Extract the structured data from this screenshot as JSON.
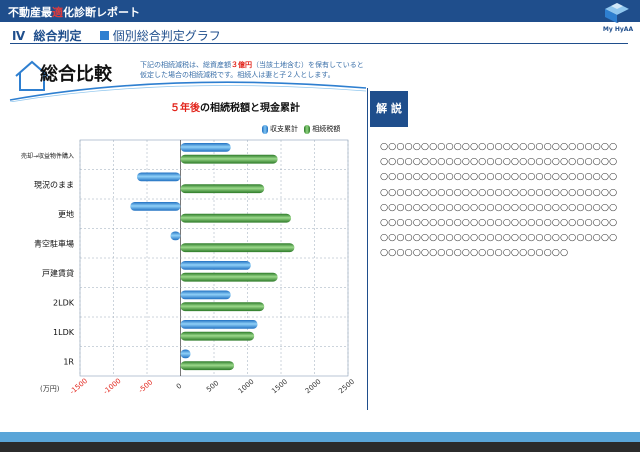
{
  "header": {
    "title_pre": "不動産最",
    "title_hl": "適",
    "title_post": "化診断レポート"
  },
  "logo": {
    "text": "My HyAA"
  },
  "section": {
    "number": "Ⅳ",
    "title": "総合判定",
    "subtitle": "個別総合判定グラフ"
  },
  "page_heading": "総合比較",
  "description": {
    "line1_a": "下記の相続減税は、総資産額",
    "line1_red": "３億円",
    "line1_b": "（当該土地含む）を保有していると",
    "line2": "仮定した場合の相続減税です。相続人は妻と子２人とします。"
  },
  "chart_title": {
    "red": "５年後",
    "rest": "の相続税額と現金累計"
  },
  "legend": {
    "cash": "収支累計",
    "tax": "相続税額"
  },
  "colors": {
    "cash": "#2f8ee0",
    "tax": "#3f9a3a",
    "brand": "#1f4e8c",
    "accent": "#e2231a"
  },
  "chart_data": {
    "type": "bar",
    "orientation": "horizontal",
    "title": "５年後の相続税額と現金累計",
    "categories": [
      "売却→収益物件購入",
      "現況のまま",
      "更地",
      "青空駐車場",
      "戸建賃貸",
      "2LDK",
      "1LDK",
      "1R"
    ],
    "series": [
      {
        "name": "収支累計",
        "values": [
          750,
          -650,
          -750,
          -150,
          1050,
          750,
          1150,
          150
        ]
      },
      {
        "name": "相続税額",
        "values": [
          1450,
          1250,
          1650,
          1700,
          1450,
          1250,
          1100,
          800
        ]
      }
    ],
    "xlabel": "(万円)",
    "xlim": [
      -1500,
      2500
    ],
    "xticks": [
      "-1500",
      "-1000",
      "-500",
      "0",
      "500",
      "1000",
      "1500",
      "2000",
      "2500"
    ],
    "grid": true,
    "legend_position": "top-right"
  },
  "commentary": {
    "heading": "解 説",
    "text": "○○○○○○○○○○○○○○○○○○○○○○○○○○○○○○○○○○○○○○○○○○○○○○○○○○○○○○○○○○○○○○○○○○○○○○○○○○○○○○○○○○○○○○○○○○○○○○○○○○○○○○○○○○○○○○○○○○○○○○○○○○○○○○○○○○○○○○○○○○○○○○○○○○○○○○○○○○○○○○○○○○○○○○○○○○○○○○○○○○○○○○○○○○○○○○○○○○○○○○○○○○○○○○○○○○○○○○○○○○○○○○○○○○"
  }
}
